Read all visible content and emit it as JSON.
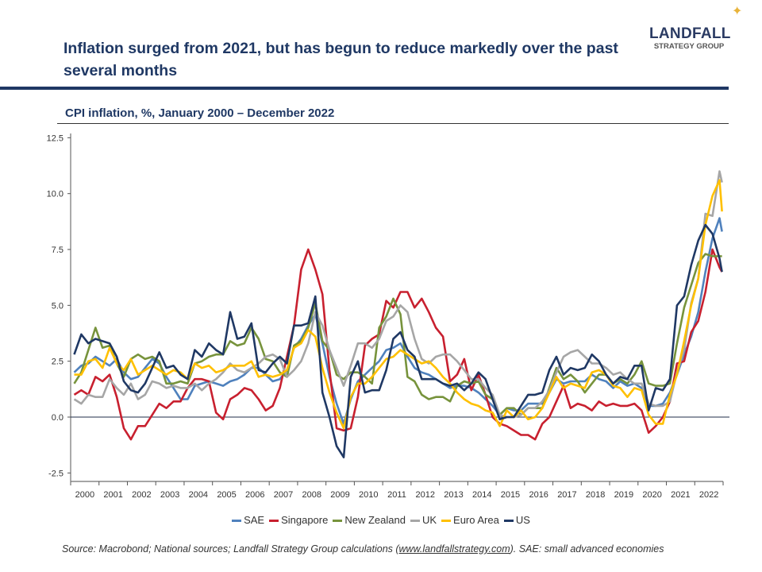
{
  "header": {
    "title": "Inflation surged from 2021, but has begun to reduce markedly over the past several months",
    "logo_main": "LANDFALL",
    "logo_sub": "STRATEGY GROUP"
  },
  "source": {
    "prefix": "Source: Macrobond; National sources; Landfall Strategy Group calculations (",
    "link": "www.landfallstrategy.com",
    "suffix": ").  SAE: small advanced economies"
  },
  "chart_data": {
    "type": "line",
    "title": "CPI inflation, %, January 2000 – December 2022",
    "xlabel": "",
    "ylabel": "",
    "ylim": [
      -2.5,
      12.5
    ],
    "yticks": [
      "12.5",
      "10.0",
      "7.5",
      "5.0",
      "2.5",
      "0.0",
      "-2.5"
    ],
    "ytick_values": [
      12.5,
      10,
      7.5,
      5,
      2.5,
      0,
      -2.5
    ],
    "xticks": [
      "2000",
      "2001",
      "2002",
      "2003",
      "2004",
      "2005",
      "2006",
      "2007",
      "2008",
      "2009",
      "2010",
      "2011",
      "2012",
      "2013",
      "2014",
      "2015",
      "2016",
      "2017",
      "2018",
      "2019",
      "2020",
      "2021",
      "2022"
    ],
    "xlim": [
      2000,
      2023
    ],
    "x_sampling": "quarterly from Q1 2000, final point December 2022",
    "grid": false,
    "legend_position": "bottom",
    "series": [
      {
        "name": "SAE",
        "color": "#4f81bd",
        "values": [
          2.0,
          2.3,
          2.4,
          2.7,
          2.5,
          2.3,
          2.6,
          2.0,
          1.7,
          1.8,
          2.2,
          2.6,
          2.4,
          1.8,
          1.3,
          0.8,
          0.8,
          1.4,
          1.5,
          1.6,
          1.5,
          1.4,
          1.6,
          1.7,
          1.9,
          2.2,
          2.2,
          1.9,
          1.6,
          1.7,
          2.1,
          3.1,
          3.5,
          4.1,
          4.6,
          3.3,
          1.8,
          0.6,
          -0.3,
          0.8,
          1.6,
          1.9,
          2.2,
          2.5,
          3.0,
          3.1,
          3.3,
          2.7,
          2.2,
          2.0,
          1.9,
          1.7,
          1.5,
          1.3,
          1.4,
          1.4,
          1.3,
          1.1,
          0.8,
          0.5,
          0.1,
          0.4,
          0.3,
          0.3,
          0.6,
          0.6,
          0.6,
          1.1,
          1.7,
          1.5,
          1.6,
          1.6,
          1.6,
          1.9,
          1.7,
          1.6,
          1.3,
          1.6,
          1.4,
          1.5,
          1.3,
          0.5,
          0.5,
          0.6,
          1.1,
          1.9,
          2.8,
          3.6,
          4.7,
          6.5,
          8.0,
          8.9,
          8.3
        ]
      },
      {
        "name": "Singapore",
        "color": "#c8202f",
        "values": [
          1.0,
          1.2,
          1.0,
          1.8,
          1.6,
          1.9,
          0.9,
          -0.5,
          -1.0,
          -0.4,
          -0.4,
          0.1,
          0.6,
          0.4,
          0.7,
          0.7,
          1.3,
          1.7,
          1.7,
          1.6,
          0.2,
          -0.1,
          0.8,
          1.0,
          1.3,
          1.2,
          0.8,
          0.3,
          0.5,
          1.3,
          2.7,
          4.1,
          6.6,
          7.5,
          6.6,
          5.5,
          2.1,
          -0.5,
          -0.6,
          -0.5,
          0.9,
          3.2,
          3.5,
          3.7,
          5.2,
          4.9,
          5.6,
          5.6,
          4.9,
          5.3,
          4.7,
          4.0,
          3.6,
          1.6,
          1.9,
          2.6,
          1.2,
          1.9,
          1.0,
          0.0,
          -0.3,
          -0.4,
          -0.6,
          -0.8,
          -0.8,
          -1.0,
          -0.3,
          0.0,
          0.7,
          1.4,
          0.4,
          0.6,
          0.5,
          0.3,
          0.7,
          0.5,
          0.6,
          0.5,
          0.5,
          0.6,
          0.3,
          -0.7,
          -0.4,
          0.0,
          0.7,
          2.4,
          2.5,
          3.8,
          4.3,
          5.6,
          7.5,
          6.7,
          6.5
        ]
      },
      {
        "name": "New Zealand",
        "color": "#77933c",
        "values": [
          1.5,
          2.0,
          3.0,
          4.0,
          3.1,
          3.2,
          2.4,
          1.8,
          2.6,
          2.8,
          2.6,
          2.7,
          2.5,
          1.5,
          1.5,
          1.6,
          1.5,
          2.4,
          2.5,
          2.7,
          2.8,
          2.8,
          3.4,
          3.2,
          3.3,
          4.0,
          3.5,
          2.6,
          2.5,
          2.0,
          1.8,
          3.2,
          3.4,
          4.0,
          5.1,
          3.4,
          3.0,
          1.9,
          1.7,
          2.0,
          2.0,
          1.8,
          1.5,
          4.0,
          4.5,
          5.3,
          4.6,
          1.8,
          1.6,
          1.0,
          0.8,
          0.9,
          0.9,
          0.7,
          1.4,
          1.6,
          1.5,
          1.6,
          1.0,
          0.8,
          0.1,
          0.4,
          0.4,
          0.1,
          0.4,
          0.4,
          0.4,
          1.3,
          2.2,
          1.7,
          1.9,
          1.6,
          1.1,
          1.5,
          1.9,
          1.9,
          1.5,
          1.7,
          1.5,
          1.9,
          2.5,
          1.5,
          1.4,
          1.4,
          1.5,
          3.3,
          4.9,
          5.9,
          6.9,
          7.3,
          7.2,
          7.2,
          7.2
        ]
      },
      {
        "name": "UK",
        "color": "#a6a6a6",
        "values": [
          0.8,
          0.6,
          1.0,
          0.9,
          0.9,
          1.7,
          1.3,
          1.0,
          1.5,
          0.8,
          1.0,
          1.6,
          1.5,
          1.3,
          1.4,
          1.3,
          1.3,
          1.5,
          1.2,
          1.5,
          1.7,
          2.0,
          2.4,
          2.1,
          2.0,
          2.2,
          2.4,
          2.7,
          2.8,
          2.6,
          1.8,
          2.1,
          2.5,
          3.3,
          4.7,
          4.1,
          3.0,
          2.2,
          1.4,
          2.3,
          3.3,
          3.3,
          3.1,
          3.5,
          4.3,
          4.5,
          5.0,
          4.7,
          3.5,
          2.6,
          2.4,
          2.7,
          2.8,
          2.8,
          2.5,
          2.1,
          1.7,
          1.7,
          1.3,
          1.0,
          0.1,
          0.0,
          0.0,
          0.1,
          0.4,
          0.4,
          0.7,
          1.2,
          2.0,
          2.7,
          2.9,
          3.0,
          2.7,
          2.4,
          2.4,
          2.2,
          1.9,
          2.0,
          1.7,
          1.5,
          1.5,
          0.6,
          0.5,
          0.5,
          0.7,
          2.0,
          3.0,
          5.1,
          6.2,
          9.1,
          9.0,
          11.0,
          10.5
        ]
      },
      {
        "name": "Euro Area",
        "color": "#ffc000",
        "values": [
          1.9,
          1.9,
          2.5,
          2.6,
          2.2,
          3.1,
          2.4,
          2.1,
          2.6,
          1.9,
          2.1,
          2.3,
          2.1,
          1.9,
          2.1,
          2.0,
          1.7,
          2.4,
          2.2,
          2.3,
          2.0,
          2.1,
          2.3,
          2.3,
          2.3,
          2.5,
          1.8,
          1.9,
          1.8,
          1.9,
          2.1,
          3.1,
          3.3,
          3.9,
          3.6,
          2.2,
          1.1,
          0.2,
          -0.5,
          0.9,
          1.5,
          1.5,
          1.8,
          2.2,
          2.6,
          2.7,
          3.0,
          2.8,
          2.6,
          2.4,
          2.5,
          2.2,
          1.8,
          1.5,
          1.1,
          0.8,
          0.6,
          0.5,
          0.3,
          0.2,
          -0.4,
          0.3,
          0.0,
          0.3,
          -0.1,
          0.0,
          0.4,
          1.1,
          1.8,
          1.3,
          1.5,
          1.4,
          1.3,
          2.0,
          2.1,
          1.9,
          1.4,
          1.3,
          0.9,
          1.3,
          1.2,
          0.1,
          -0.3,
          -0.3,
          1.0,
          1.9,
          3.4,
          5.0,
          6.2,
          8.6,
          9.9,
          10.6,
          9.2
        ]
      },
      {
        "name": "US",
        "color": "#1f3864",
        "values": [
          2.8,
          3.7,
          3.3,
          3.5,
          3.4,
          3.3,
          2.7,
          1.6,
          1.2,
          1.1,
          1.5,
          2.2,
          2.9,
          2.2,
          2.3,
          1.9,
          1.7,
          3.0,
          2.7,
          3.3,
          3.0,
          2.8,
          4.7,
          3.5,
          3.6,
          4.2,
          2.1,
          2.0,
          2.4,
          2.7,
          2.4,
          4.1,
          4.1,
          4.2,
          5.4,
          1.1,
          0.0,
          -1.3,
          -1.8,
          1.8,
          2.5,
          1.1,
          1.2,
          1.2,
          2.1,
          3.5,
          3.8,
          3.0,
          2.7,
          1.7,
          1.7,
          1.7,
          1.5,
          1.4,
          1.5,
          1.2,
          1.5,
          2.0,
          1.7,
          0.8,
          -0.1,
          0.0,
          0.0,
          0.5,
          1.0,
          1.0,
          1.1,
          2.1,
          2.7,
          1.9,
          2.2,
          2.1,
          2.2,
          2.8,
          2.5,
          1.9,
          1.5,
          1.8,
          1.7,
          2.3,
          2.3,
          0.3,
          1.3,
          1.2,
          1.7,
          5.0,
          5.4,
          6.8,
          7.9,
          8.6,
          8.2,
          7.1,
          6.5
        ]
      }
    ]
  }
}
